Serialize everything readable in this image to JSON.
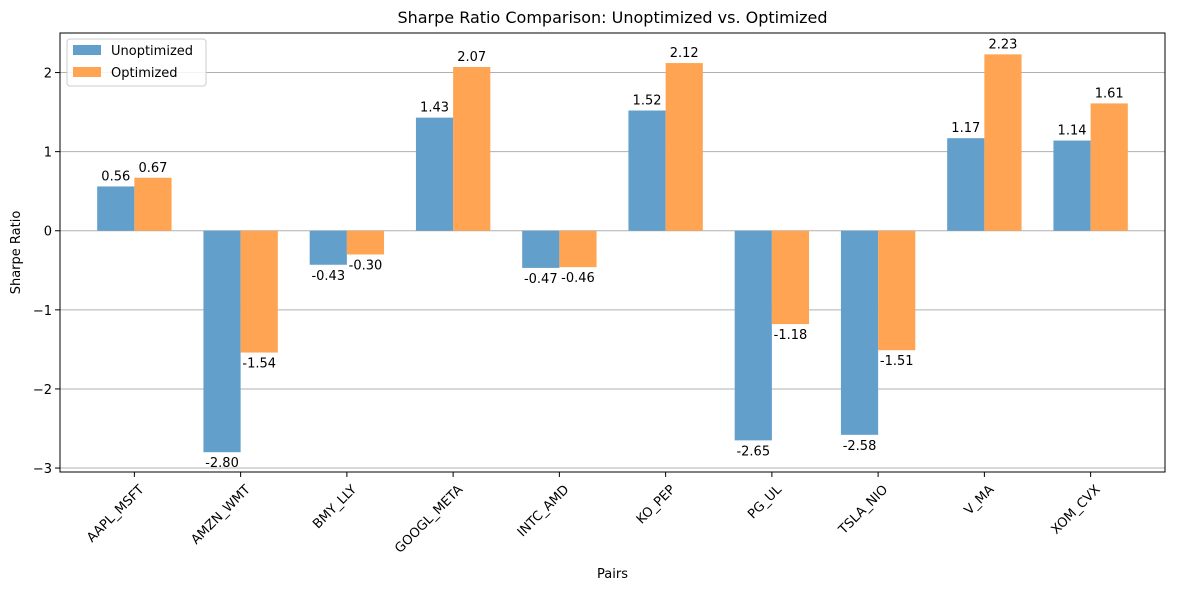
{
  "chart_data": {
    "type": "bar",
    "title": "Sharpe Ratio Comparison: Unoptimized vs. Optimized",
    "xlabel": "Pairs",
    "ylabel": "Sharpe Ratio",
    "ylim": [
      -3.05,
      2.5
    ],
    "yticks": [
      {
        "value": -3,
        "label": "−3"
      },
      {
        "value": -2,
        "label": "−2"
      },
      {
        "value": -1,
        "label": "−1"
      },
      {
        "value": 0,
        "label": "0"
      },
      {
        "value": 1,
        "label": "1"
      },
      {
        "value": 2,
        "label": "2"
      }
    ],
    "grid": "horizontal",
    "legend_position": "top-left",
    "categories": [
      "AAPL_MSFT",
      "AMZN_WMT",
      "BMY_LLY",
      "GOOGL_META",
      "INTC_AMD",
      "KO_PEP",
      "PG_UL",
      "TSLA_NIO",
      "V_MA",
      "XOM_CVX"
    ],
    "series": [
      {
        "name": "Unoptimized",
        "color": "#639fcb",
        "values": [
          0.56,
          -2.8,
          -0.43,
          1.43,
          -0.47,
          1.52,
          -2.65,
          -2.58,
          1.17,
          1.14
        ],
        "labels": [
          "0.56",
          "-2.80",
          "-0.43",
          "1.43",
          "-0.47",
          "1.52",
          "-2.65",
          "-2.58",
          "1.17",
          "1.14"
        ]
      },
      {
        "name": "Optimized",
        "color": "#ffa452",
        "values": [
          0.67,
          -1.54,
          -0.3,
          2.07,
          -0.46,
          2.12,
          -1.18,
          -1.51,
          2.23,
          1.61
        ],
        "labels": [
          "0.67",
          "-1.54",
          "-0.30",
          "2.07",
          "-0.46",
          "2.12",
          "-1.18",
          "-1.51",
          "2.23",
          "1.61"
        ]
      }
    ]
  }
}
